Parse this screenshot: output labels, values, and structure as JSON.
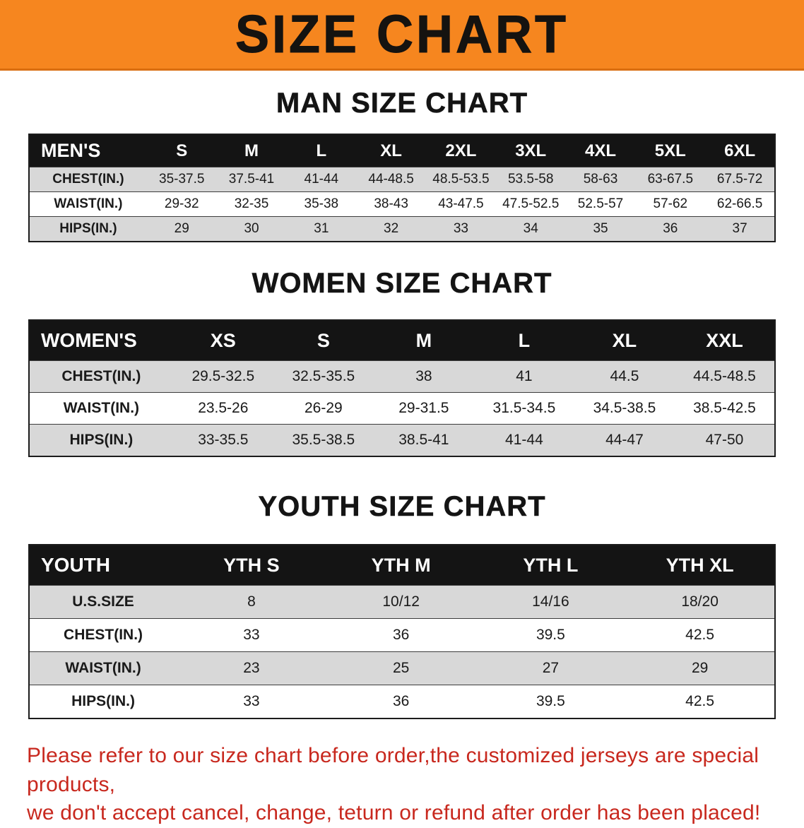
{
  "banner": {
    "title": "SIZE CHART"
  },
  "colors": {
    "banner_bg": "#F6861F",
    "header_bg": "#141414",
    "shaded_row": "#D8D8D8",
    "disclaimer_red": "#C8281E"
  },
  "chart_data": [
    {
      "type": "table",
      "title": "MAN SIZE CHART",
      "columns": [
        "MEN'S",
        "S",
        "M",
        "L",
        "XL",
        "2XL",
        "3XL",
        "4XL",
        "5XL",
        "6XL"
      ],
      "rows": [
        [
          "CHEST(IN.)",
          "35-37.5",
          "37.5-41",
          "41-44",
          "44-48.5",
          "48.5-53.5",
          "53.5-58",
          "58-63",
          "63-67.5",
          "67.5-72"
        ],
        [
          "WAIST(IN.)",
          "29-32",
          "32-35",
          "35-38",
          "38-43",
          "43-47.5",
          "47.5-52.5",
          "52.5-57",
          "57-62",
          "62-66.5"
        ],
        [
          "HIPS(IN.)",
          "29",
          "30",
          "31",
          "32",
          "33",
          "34",
          "35",
          "36",
          "37"
        ]
      ]
    },
    {
      "type": "table",
      "title": "WOMEN SIZE CHART",
      "columns": [
        "WOMEN'S",
        "XS",
        "S",
        "M",
        "L",
        "XL",
        "XXL"
      ],
      "rows": [
        [
          "CHEST(IN.)",
          "29.5-32.5",
          "32.5-35.5",
          "38",
          "41",
          "44.5",
          "44.5-48.5"
        ],
        [
          "WAIST(IN.)",
          "23.5-26",
          "26-29",
          "29-31.5",
          "31.5-34.5",
          "34.5-38.5",
          "38.5-42.5"
        ],
        [
          "HIPS(IN.)",
          "33-35.5",
          "35.5-38.5",
          "38.5-41",
          "41-44",
          "44-47",
          "47-50"
        ]
      ]
    },
    {
      "type": "table",
      "title": "YOUTH SIZE CHART",
      "columns": [
        "YOUTH",
        "YTH S",
        "YTH M",
        "YTH L",
        "YTH XL"
      ],
      "rows": [
        [
          "U.S.SIZE",
          "8",
          "10/12",
          "14/16",
          "18/20"
        ],
        [
          "CHEST(IN.)",
          "33",
          "36",
          "39.5",
          "42.5"
        ],
        [
          "WAIST(IN.)",
          "23",
          "25",
          "27",
          "29"
        ],
        [
          "HIPS(IN.)",
          "33",
          "36",
          "39.5",
          "42.5"
        ]
      ]
    }
  ],
  "disclaimer": {
    "line1": "Please refer to our size chart before order,the customized jerseys are special products,",
    "line2": "we don't accept cancel, change, teturn or refund after order has been placed!"
  }
}
